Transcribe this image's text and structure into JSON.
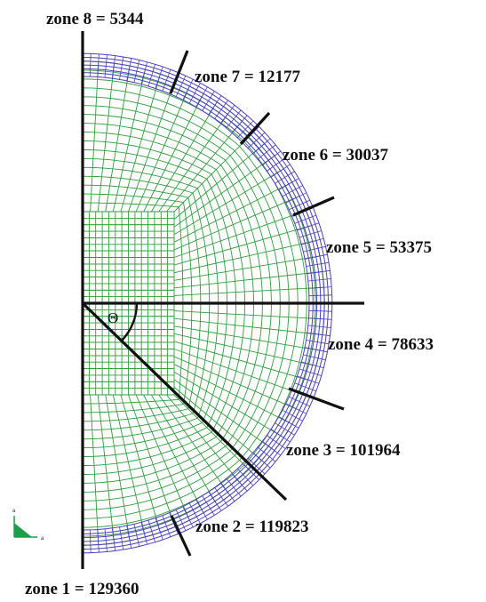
{
  "diagram": {
    "zones": [
      {
        "id": "zone-1",
        "label": "zone 1 = 129360"
      },
      {
        "id": "zone-2",
        "label": "zone 2 = 119823"
      },
      {
        "id": "zone-3",
        "label": "zone 3 = 101964"
      },
      {
        "id": "zone-4",
        "label": "zone 4 = 78633"
      },
      {
        "id": "zone-5",
        "label": "zone 5 = 53375"
      },
      {
        "id": "zone-6",
        "label": "zone 6 = 30037"
      },
      {
        "id": "zone-7",
        "label": "zone 7 = 12177"
      },
      {
        "id": "zone-8",
        "label": "zone 8 = 5344"
      }
    ],
    "angle_symbol": "Θ",
    "triad": {
      "axis_a": "a",
      "axis_b": "a"
    },
    "colors": {
      "mesh": "#2e9e3a",
      "outer_rings": "#4b3fbf",
      "lines": "#111111",
      "triad": "#1e9e4a"
    }
  }
}
